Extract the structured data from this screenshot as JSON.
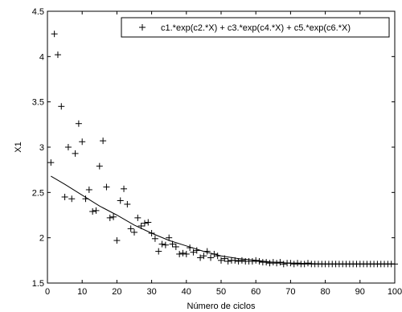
{
  "chart_data": {
    "type": "scatter",
    "title": "",
    "xlabel": "Número de ciclos",
    "ylabel": "X1",
    "xlim": [
      0,
      100
    ],
    "ylim": [
      1.5,
      4.5
    ],
    "xticks": [
      "0",
      "10",
      "20",
      "30",
      "40",
      "50",
      "60",
      "70",
      "80",
      "90",
      "100"
    ],
    "yticks": [
      "1.5",
      "2",
      "2.5",
      "3",
      "3.5",
      "4",
      "4.5"
    ],
    "grid": false,
    "legend_position": "top-right",
    "legend": [
      "c1.*exp(c2.*X) + c3.*exp(c4.*X) + c5.*exp(c6.*X)"
    ],
    "series": [
      {
        "marker": "+",
        "points": [
          [
            1,
            2.83
          ],
          [
            2,
            4.25
          ],
          [
            3,
            4.02
          ],
          [
            4,
            3.45
          ],
          [
            5,
            2.45
          ],
          [
            6,
            3.0
          ],
          [
            7,
            2.43
          ],
          [
            8,
            2.93
          ],
          [
            9,
            3.26
          ],
          [
            10,
            3.06
          ],
          [
            11,
            2.43
          ],
          [
            12,
            2.53
          ],
          [
            13,
            2.29
          ],
          [
            14,
            2.3
          ],
          [
            15,
            2.79
          ],
          [
            16,
            3.07
          ],
          [
            17,
            2.56
          ],
          [
            18,
            2.22
          ],
          [
            19,
            2.23
          ],
          [
            20,
            1.97
          ],
          [
            21,
            2.41
          ],
          [
            22,
            2.54
          ],
          [
            23,
            2.37
          ],
          [
            24,
            2.1
          ],
          [
            25,
            2.06
          ],
          [
            26,
            2.22
          ],
          [
            27,
            2.13
          ],
          [
            28,
            2.16
          ],
          [
            29,
            2.17
          ],
          [
            30,
            2.05
          ],
          [
            31,
            1.99
          ],
          [
            32,
            1.85
          ],
          [
            33,
            1.93
          ],
          [
            34,
            1.92
          ],
          [
            35,
            2.0
          ],
          [
            36,
            1.93
          ],
          [
            37,
            1.9
          ],
          [
            38,
            1.82
          ],
          [
            39,
            1.83
          ],
          [
            40,
            1.82
          ],
          [
            41,
            1.89
          ],
          [
            42,
            1.84
          ],
          [
            43,
            1.86
          ],
          [
            44,
            1.78
          ],
          [
            45,
            1.8
          ],
          [
            46,
            1.85
          ],
          [
            47,
            1.78
          ],
          [
            48,
            1.82
          ],
          [
            49,
            1.8
          ],
          [
            50,
            1.75
          ],
          [
            51,
            1.77
          ],
          [
            52,
            1.74
          ],
          [
            53,
            1.75
          ],
          [
            54,
            1.75
          ],
          [
            55,
            1.74
          ],
          [
            56,
            1.75
          ],
          [
            57,
            1.74
          ],
          [
            58,
            1.74
          ],
          [
            59,
            1.74
          ],
          [
            60,
            1.75
          ],
          [
            61,
            1.74
          ],
          [
            62,
            1.73
          ],
          [
            63,
            1.73
          ],
          [
            64,
            1.72
          ],
          [
            65,
            1.73
          ],
          [
            66,
            1.72
          ],
          [
            67,
            1.73
          ],
          [
            68,
            1.71
          ],
          [
            69,
            1.72
          ],
          [
            70,
            1.72
          ],
          [
            71,
            1.71
          ],
          [
            72,
            1.72
          ],
          [
            73,
            1.71
          ],
          [
            74,
            1.71
          ],
          [
            75,
            1.72
          ],
          [
            76,
            1.71
          ],
          [
            77,
            1.71
          ],
          [
            78,
            1.71
          ],
          [
            79,
            1.71
          ],
          [
            80,
            1.71
          ],
          [
            81,
            1.71
          ],
          [
            82,
            1.71
          ],
          [
            83,
            1.71
          ],
          [
            84,
            1.71
          ],
          [
            85,
            1.71
          ],
          [
            86,
            1.71
          ],
          [
            87,
            1.71
          ],
          [
            88,
            1.71
          ],
          [
            89,
            1.71
          ],
          [
            90,
            1.71
          ],
          [
            91,
            1.71
          ],
          [
            92,
            1.71
          ],
          [
            93,
            1.71
          ],
          [
            94,
            1.71
          ],
          [
            95,
            1.71
          ],
          [
            96,
            1.71
          ],
          [
            97,
            1.71
          ],
          [
            98,
            1.71
          ],
          [
            99,
            1.71
          ],
          [
            100,
            1.71
          ]
        ]
      },
      {
        "line": "solid",
        "points": [
          [
            1,
            2.68
          ],
          [
            5,
            2.59
          ],
          [
            10,
            2.47
          ],
          [
            15,
            2.35
          ],
          [
            20,
            2.25
          ],
          [
            25,
            2.14
          ],
          [
            30,
            2.05
          ],
          [
            35,
            1.97
          ],
          [
            40,
            1.91
          ],
          [
            45,
            1.85
          ],
          [
            50,
            1.8
          ],
          [
            55,
            1.77
          ],
          [
            60,
            1.75
          ],
          [
            65,
            1.73
          ],
          [
            70,
            1.72
          ],
          [
            75,
            1.715
          ],
          [
            80,
            1.71
          ],
          [
            85,
            1.71
          ],
          [
            90,
            1.71
          ],
          [
            95,
            1.71
          ],
          [
            100,
            1.71
          ]
        ]
      }
    ]
  }
}
